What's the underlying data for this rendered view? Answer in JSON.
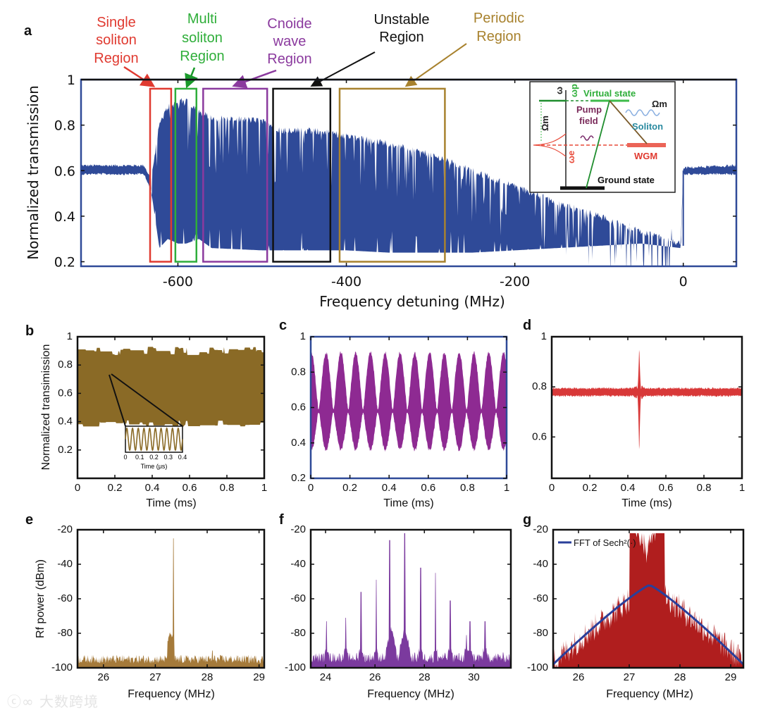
{
  "panel_letters": {
    "a": "a",
    "b": "b",
    "c": "c",
    "d": "d",
    "e": "e",
    "f": "f",
    "g": "g"
  },
  "annotations": {
    "single": [
      "Single",
      "soliton",
      "Region"
    ],
    "multi": [
      "Multi",
      "soliton",
      "Region"
    ],
    "cnoide": [
      "Cnoide",
      "wave",
      "Region"
    ],
    "unstable": [
      "Unstable",
      "Region"
    ],
    "periodic": [
      "Periodic",
      "Region"
    ]
  },
  "colors": {
    "single": "#e03a30",
    "multi": "#2fae3a",
    "cnoide": "#8b3a9e",
    "unstable": "#111111",
    "periodic": "#a8822e",
    "a_trace": "#2f4a98",
    "b_trace": "#8a6a26",
    "c_trace": "#8e2a92",
    "d_trace": "#d83838",
    "e_trace": "#a57a3a",
    "f_trace": "#7b3a9e",
    "g_trace": "#b01e1e",
    "g_fit": "#2a3f9a"
  },
  "inset": {
    "virtual_state": "Virtual state",
    "pump_field": [
      "Pump",
      "field"
    ],
    "soliton": "Soliton",
    "wgm": "WGM",
    "ground_state": "Ground state",
    "omega_m": "Ωm",
    "omega": "ω",
    "omega_p": "ωp",
    "omega_e": "ωe"
  },
  "watermark": "大数跨境",
  "chart_data": [
    {
      "id": "a",
      "type": "area",
      "xlabel": "Frequency detuning (MHz)",
      "ylabel": "Normalized transmission",
      "xlim": [
        -715,
        63
      ],
      "ylim": [
        0.18,
        1.0
      ],
      "xticks": [
        {
          "v": -600,
          "t": "-600"
        },
        {
          "v": -400,
          "t": "-400"
        },
        {
          "v": -200,
          "t": "-200"
        },
        {
          "v": 0,
          "t": "0"
        }
      ],
      "yticks": [
        {
          "v": 0.2,
          "t": "0.2"
        },
        {
          "v": 0.4,
          "t": "0.4"
        },
        {
          "v": 0.6,
          "t": "0.6"
        },
        {
          "v": 0.8,
          "t": "0.8"
        },
        {
          "v": 1.0,
          "t": "1"
        }
      ],
      "envelope": {
        "x": [
          -715,
          -640,
          -632,
          -622,
          -612,
          -600,
          -590,
          -575,
          -560,
          -500,
          -480,
          -420,
          -400,
          -350,
          -300,
          -250,
          -200,
          -150,
          -100,
          -50,
          -3,
          0,
          63
        ],
        "upper": [
          0.62,
          0.62,
          0.56,
          0.8,
          0.88,
          0.9,
          0.91,
          0.86,
          0.83,
          0.82,
          0.78,
          0.77,
          0.75,
          0.72,
          0.67,
          0.6,
          0.53,
          0.46,
          0.4,
          0.33,
          0.28,
          0.61,
          0.62
        ],
        "lower": [
          0.59,
          0.59,
          0.52,
          0.26,
          0.3,
          0.28,
          0.28,
          0.3,
          0.26,
          0.25,
          0.25,
          0.25,
          0.25,
          0.24,
          0.24,
          0.24,
          0.25,
          0.26,
          0.27,
          0.28,
          0.26,
          0.59,
          0.59
        ]
      },
      "regions": [
        {
          "name": "single",
          "x": [
            -633,
            -608
          ],
          "y": [
            0.2,
            0.96
          ]
        },
        {
          "name": "multi",
          "x": [
            -603,
            -578
          ],
          "y": [
            0.2,
            0.96
          ]
        },
        {
          "name": "cnoide",
          "x": [
            -570,
            -494
          ],
          "y": [
            0.2,
            0.96
          ]
        },
        {
          "name": "unstable",
          "x": [
            -487,
            -419
          ],
          "y": [
            0.2,
            0.96
          ]
        },
        {
          "name": "periodic",
          "x": [
            -408,
            -283
          ],
          "y": [
            0.2,
            0.96
          ]
        }
      ]
    },
    {
      "id": "b",
      "type": "area",
      "xlabel": "Time (ms)",
      "ylabel": "Normalized transimission",
      "xlim": [
        0,
        1
      ],
      "ylim": [
        0,
        1
      ],
      "xticks": [
        {
          "v": 0,
          "t": "0"
        },
        {
          "v": 0.2,
          "t": "0.2"
        },
        {
          "v": 0.4,
          "t": "0.4"
        },
        {
          "v": 0.6,
          "t": "0.6"
        },
        {
          "v": 0.8,
          "t": "0.8"
        },
        {
          "v": 1,
          "t": "1"
        }
      ],
      "yticks": [
        {
          "v": 0.2,
          "t": "0.2"
        },
        {
          "v": 0.4,
          "t": "0.4"
        },
        {
          "v": 0.6,
          "t": "0.6"
        },
        {
          "v": 0.8,
          "t": "0.8"
        },
        {
          "v": 1,
          "t": "1"
        }
      ],
      "band": {
        "upper": 0.9,
        "lower": 0.39
      },
      "inset": {
        "xlabel": "Time (μs)",
        "xlim": [
          0,
          0.4
        ],
        "cycles": 10,
        "xticks": [
          {
            "v": 0,
            "t": "0"
          },
          {
            "v": 0.1,
            "t": "0.1"
          },
          {
            "v": 0.2,
            "t": "0.2"
          },
          {
            "v": 0.3,
            "t": "0.3"
          },
          {
            "v": 0.4,
            "t": "0.4"
          }
        ]
      }
    },
    {
      "id": "c",
      "type": "area",
      "xlabel": "Time (ms)",
      "ylabel": "",
      "xlim": [
        0,
        1
      ],
      "ylim": [
        0.2,
        1
      ],
      "xticks": [
        {
          "v": 0,
          "t": "0"
        },
        {
          "v": 0.2,
          "t": "0.2"
        },
        {
          "v": 0.4,
          "t": "0.4"
        },
        {
          "v": 0.6,
          "t": "0.6"
        },
        {
          "v": 0.8,
          "t": "0.8"
        },
        {
          "v": 1,
          "t": "1"
        }
      ],
      "yticks": [
        {
          "v": 0.2,
          "t": "0.2"
        },
        {
          "v": 0.4,
          "t": "0.4"
        },
        {
          "v": 0.6,
          "t": "0.6"
        },
        {
          "v": 0.8,
          "t": "0.8"
        },
        {
          "v": 1,
          "t": "1"
        }
      ],
      "oscillation": {
        "period_ms": 0.0755,
        "center": 0.58,
        "max": 0.91,
        "min": 0.36
      }
    },
    {
      "id": "d",
      "type": "line",
      "xlabel": "Time (ms)",
      "ylabel": "",
      "xlim": [
        0,
        1
      ],
      "ylim": [
        0.435,
        1
      ],
      "xticks": [
        {
          "v": 0,
          "t": "0"
        },
        {
          "v": 0.2,
          "t": "0.2"
        },
        {
          "v": 0.4,
          "t": "0.4"
        },
        {
          "v": 0.6,
          "t": "0.6"
        },
        {
          "v": 0.8,
          "t": "0.8"
        },
        {
          "v": 1,
          "t": "1"
        }
      ],
      "yticks": [
        {
          "v": 0.6,
          "t": "0.6"
        },
        {
          "v": 0.8,
          "t": "0.8"
        },
        {
          "v": 1,
          "t": "1"
        }
      ],
      "baseline": 0.78,
      "spike": {
        "x": 0.46,
        "max": 0.97,
        "min": 0.52
      }
    },
    {
      "id": "e",
      "type": "bar",
      "xlabel": "Frequency (MHz)",
      "ylabel": "Rf power (dBm)",
      "xlim": [
        25.5,
        29.1
      ],
      "ylim": [
        -100,
        -20
      ],
      "xticks": [
        {
          "v": 26,
          "t": "26"
        },
        {
          "v": 27,
          "t": "27"
        },
        {
          "v": 28,
          "t": "28"
        },
        {
          "v": 29,
          "t": "29"
        }
      ],
      "yticks": [
        {
          "v": -100,
          "t": "-100"
        },
        {
          "v": -80,
          "t": "-80"
        },
        {
          "v": -60,
          "t": "-60"
        },
        {
          "v": -40,
          "t": "-40"
        },
        {
          "v": -20,
          "t": "-20"
        }
      ],
      "noise_floor": -95,
      "peaks": [
        {
          "x": 27.35,
          "y": -25
        },
        {
          "x": 27.3,
          "y": -80,
          "pedestal": true
        },
        {
          "x": 28.1,
          "y": -90
        }
      ]
    },
    {
      "id": "f",
      "type": "bar",
      "xlabel": "Frequency (MHz)",
      "ylabel": "",
      "xlim": [
        23.4,
        31.5
      ],
      "ylim": [
        -100,
        -20
      ],
      "xticks": [
        {
          "v": 24,
          "t": "24"
        },
        {
          "v": 26,
          "t": "26"
        },
        {
          "v": 28,
          "t": "28"
        },
        {
          "v": 30,
          "t": "30"
        }
      ],
      "yticks": [
        {
          "v": -100,
          "t": "-100"
        },
        {
          "v": -80,
          "t": "-80"
        },
        {
          "v": -60,
          "t": "-60"
        },
        {
          "v": -40,
          "t": "-40"
        },
        {
          "v": -20,
          "t": "-20"
        }
      ],
      "noise_floor": -94,
      "peaks": [
        {
          "x": 24.04,
          "y": -73
        },
        {
          "x": 24.82,
          "y": -71
        },
        {
          "x": 25.43,
          "y": -56
        },
        {
          "x": 26.05,
          "y": -49
        },
        {
          "x": 26.6,
          "y": -26
        },
        {
          "x": 27.2,
          "y": -22
        },
        {
          "x": 27.85,
          "y": -42
        },
        {
          "x": 28.45,
          "y": -45
        },
        {
          "x": 29.05,
          "y": -61
        },
        {
          "x": 29.7,
          "y": -81
        },
        {
          "x": 29.85,
          "y": -73
        },
        {
          "x": 30.45,
          "y": -73
        },
        {
          "x": 26.65,
          "y": -77,
          "pedestal": true
        },
        {
          "x": 27.2,
          "y": -77,
          "pedestal": true
        }
      ]
    },
    {
      "id": "g",
      "type": "bar",
      "xlabel": "Frequency (MHz)",
      "ylabel": "",
      "xlim": [
        25.5,
        29.25
      ],
      "ylim": [
        -100,
        -20
      ],
      "xticks": [
        {
          "v": 26,
          "t": "26"
        },
        {
          "v": 27,
          "t": "27"
        },
        {
          "v": 28,
          "t": "28"
        },
        {
          "v": 29,
          "t": "29"
        }
      ],
      "yticks": [
        {
          "v": -100,
          "t": "-100"
        },
        {
          "v": -80,
          "t": "-80"
        },
        {
          "v": -60,
          "t": "-60"
        },
        {
          "v": -40,
          "t": "-40"
        },
        {
          "v": -20,
          "t": "-20"
        }
      ],
      "legend": {
        "label": "FFT of Sech²(·)",
        "position": "top-left"
      },
      "fit": {
        "x": [
          25.5,
          27.4,
          29.25
        ],
        "y": [
          -98,
          -52,
          -98
        ]
      },
      "peak": {
        "x": 27.35,
        "y": -25
      }
    }
  ]
}
